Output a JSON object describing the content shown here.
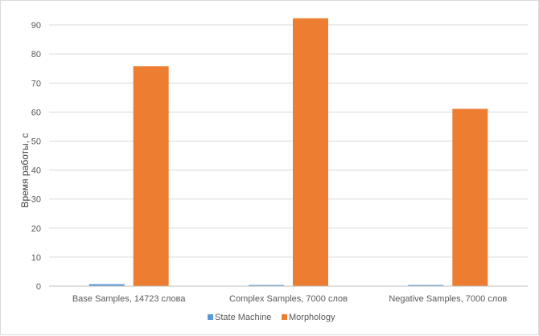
{
  "chart_data": {
    "type": "bar",
    "title": "",
    "xlabel": "",
    "ylabel": "Время работы, с",
    "ylim": [
      0,
      95
    ],
    "yticks": [
      0,
      10,
      20,
      30,
      40,
      50,
      60,
      70,
      80,
      90
    ],
    "grid": true,
    "legend_position": "bottom",
    "categories": [
      "Base Samples, 14723 слова",
      "Complex Samples, 7000 слов",
      "Negative Samples, 7000 слов"
    ],
    "series": [
      {
        "name": "State Machine",
        "color": "#5b9bd5",
        "values": [
          0.7,
          0.4,
          0.4
        ]
      },
      {
        "name": "Morphology",
        "color": "#ed7d31",
        "values": [
          75.8,
          92.3,
          61.1
        ]
      }
    ]
  }
}
